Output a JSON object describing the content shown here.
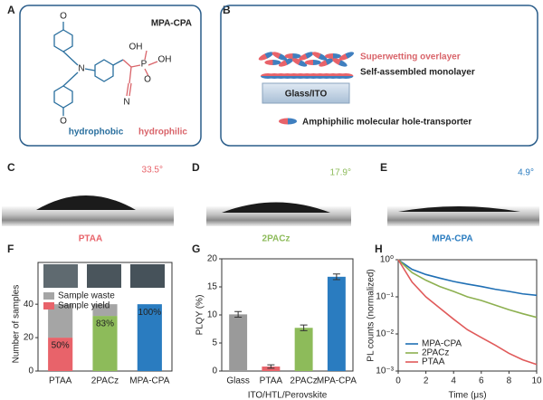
{
  "panels": {
    "A": {
      "label": "A",
      "title": "MPA-CPA",
      "atoms": [
        "O",
        "N",
        "O",
        "OH",
        "O",
        "P",
        "OH",
        "N"
      ],
      "left_text": "hydrophobic",
      "right_text": "hydrophilic"
    },
    "B": {
      "label": "B",
      "overlayer": "Superwetting overlayer",
      "monolayer": "Self-assembled monolayer",
      "substrate": "Glass/ITO",
      "legend": "Amphiphilic molecular hole-transporter"
    },
    "C": {
      "label": "C",
      "angle": "33.5°",
      "name": "PTAA"
    },
    "D": {
      "label": "D",
      "angle": "17.9°",
      "name": "2PACz"
    },
    "E": {
      "label": "E",
      "angle": "4.9°",
      "name": "MPA-CPA"
    }
  },
  "chart_data": [
    {
      "type": "bar",
      "panel_label": "F",
      "stacked": true,
      "ylabel": "Number of samples",
      "categories": [
        "PTAA",
        "2PACz",
        "MPA-CPA"
      ],
      "series": [
        {
          "name": "Sample yield",
          "color": "#e8636a",
          "colors": [
            "#e8636a",
            "#8dbb5a",
            "#2a7cc0"
          ],
          "values": [
            20,
            33,
            40
          ]
        },
        {
          "name": "Sample waste",
          "color": "#a5a5a5",
          "values": [
            20,
            7,
            0
          ]
        }
      ],
      "annotations": [
        "50%",
        "83%",
        "100%"
      ],
      "ylim": [
        0,
        65
      ],
      "yticks": [
        0,
        20,
        40
      ]
    },
    {
      "type": "bar",
      "panel_label": "G",
      "ylabel": "PLQY (%)",
      "xlabel": "ITO/HTL/Perovskite",
      "categories": [
        "Glass",
        "PTAA",
        "2PACz",
        "MPA-CPA"
      ],
      "series": [
        {
          "colors": [
            "#9a9a9a",
            "#e8636a",
            "#8dbb5a",
            "#2a7cc0"
          ],
          "values": [
            10.1,
            0.8,
            7.7,
            16.8
          ],
          "errors": [
            0.5,
            0.3,
            0.5,
            0.5
          ]
        }
      ],
      "ylim": [
        0,
        20
      ],
      "yticks": [
        0,
        5,
        10,
        15,
        20
      ]
    },
    {
      "type": "line",
      "panel_label": "H",
      "log_y": true,
      "xlabel": "Time (μs)",
      "ylabel": "PL counts (normalized)",
      "x": [
        0,
        1,
        2,
        3,
        4,
        5,
        6,
        7,
        8,
        9,
        10
      ],
      "series": [
        {
          "name": "MPA-CPA",
          "color": "#1f6fb4",
          "values": [
            1,
            0.55,
            0.4,
            0.32,
            0.26,
            0.22,
            0.19,
            0.16,
            0.14,
            0.12,
            0.11
          ]
        },
        {
          "name": "2PACz",
          "color": "#8db050",
          "values": [
            1,
            0.45,
            0.28,
            0.19,
            0.14,
            0.1,
            0.08,
            0.06,
            0.045,
            0.035,
            0.028
          ]
        },
        {
          "name": "PTAA",
          "color": "#e05a5a",
          "values": [
            1,
            0.25,
            0.1,
            0.05,
            0.025,
            0.013,
            0.008,
            0.005,
            0.003,
            0.002,
            0.0015
          ]
        }
      ],
      "xlim": [
        0,
        10
      ],
      "xticks": [
        0,
        2,
        4,
        6,
        8,
        10
      ],
      "ylim": [
        0.001,
        1
      ],
      "yticks": [
        {
          "value": 0.001,
          "label": "10⁻³"
        },
        {
          "value": 0.01,
          "label": "10⁻²"
        },
        {
          "value": 0.1,
          "label": "10⁻¹"
        },
        {
          "value": 1,
          "label": "10⁰"
        }
      ]
    }
  ]
}
